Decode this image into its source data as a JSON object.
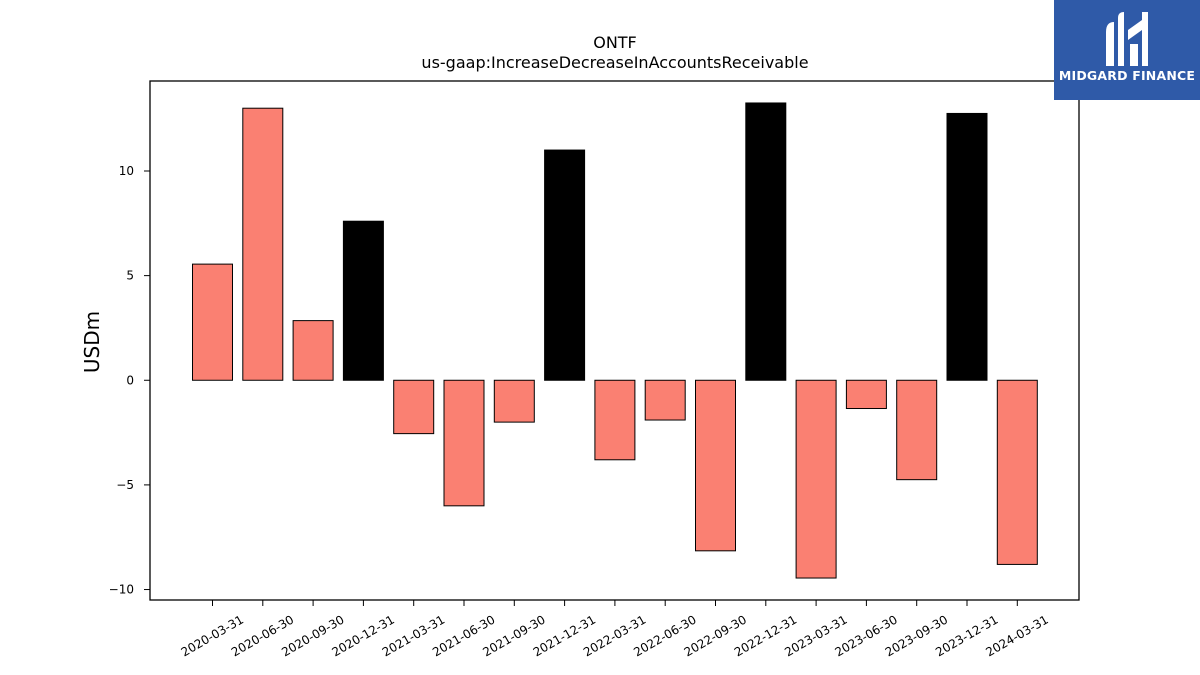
{
  "logo": {
    "text": "MIDGARD FINANCE",
    "color": "#2f5aa8"
  },
  "chart_data": {
    "type": "bar",
    "title": "ONTF",
    "subtitle": "us-gaap:IncreaseDecreaseInAccountsReceivable",
    "xlabel": "",
    "ylabel": "USDm",
    "ylim": [
      -10.5,
      14.3
    ],
    "yticks": [
      10,
      5,
      0,
      -5,
      -10
    ],
    "ytick_labels": [
      "10",
      "5",
      "0",
      "−5",
      "−10"
    ],
    "grid": false,
    "categories": [
      "2020-03-31",
      "2020-06-30",
      "2020-09-30",
      "2020-12-31",
      "2021-03-31",
      "2021-06-30",
      "2021-09-30",
      "2021-12-31",
      "2022-03-31",
      "2022-06-30",
      "2022-09-30",
      "2022-12-31",
      "2023-03-31",
      "2023-06-30",
      "2023-09-30",
      "2023-12-31",
      "2024-03-31"
    ],
    "values": [
      5.55,
      13.0,
      2.85,
      7.6,
      -2.55,
      -6.0,
      -2.0,
      11.0,
      -3.8,
      -1.9,
      -8.15,
      13.25,
      -9.45,
      -1.35,
      -4.75,
      12.75,
      -8.8
    ],
    "colors": [
      "#fa8072",
      "#fa8072",
      "#fa8072",
      "#000000",
      "#fa8072",
      "#fa8072",
      "#fa8072",
      "#000000",
      "#fa8072",
      "#fa8072",
      "#fa8072",
      "#000000",
      "#fa8072",
      "#fa8072",
      "#fa8072",
      "#000000",
      "#fa8072"
    ],
    "bar_edge_color": "#000000"
  }
}
